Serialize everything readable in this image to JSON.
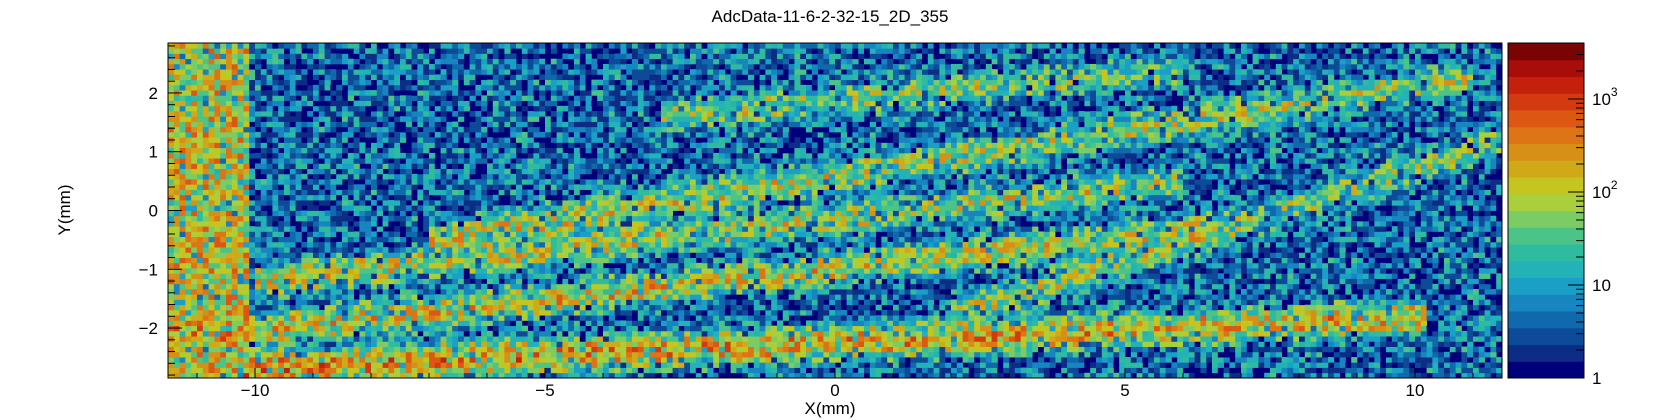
{
  "chart_data": {
    "type": "heatmap",
    "title": "AdcData-11-6-2-32-15_2D_355",
    "xlabel": "X(mm)",
    "ylabel": "Y(mm)",
    "xlim": [
      -11.5,
      11.5
    ],
    "ylim": [
      -2.85,
      2.85
    ],
    "x_ticks": [
      {
        "value": -10,
        "label": "−10"
      },
      {
        "value": -5,
        "label": "−5"
      },
      {
        "value": 0,
        "label": "0"
      },
      {
        "value": 5,
        "label": "5"
      },
      {
        "value": 10,
        "label": "10"
      }
    ],
    "y_ticks": [
      {
        "value": -2,
        "label": "−2"
      },
      {
        "value": -1,
        "label": "−1"
      },
      {
        "value": 0,
        "label": "0"
      },
      {
        "value": 1,
        "label": "1"
      },
      {
        "value": 2,
        "label": "2"
      }
    ],
    "z_scale": "log",
    "zlim": [
      1,
      4000
    ],
    "z_ticks": [
      {
        "value": 1,
        "label": "1"
      },
      {
        "value": 10,
        "label": "10"
      },
      {
        "value": 100,
        "base": "10",
        "exp": "2"
      },
      {
        "value": 1000,
        "base": "10",
        "exp": "3"
      }
    ],
    "grid": false,
    "colormap": [
      "#00007a",
      "#0d2c86",
      "#0d4a98",
      "#1068ad",
      "#1685c0",
      "#1aa0c6",
      "#22b2b8",
      "#2fbb9f",
      "#4dc487",
      "#7ccc66",
      "#a9cf3d",
      "#c6c41e",
      "#cfa918",
      "#d88f17",
      "#dd7415",
      "#dc5812",
      "#d33a0f",
      "#c4200c",
      "#a90d09",
      "#7a0403"
    ],
    "structures": [
      {
        "kind": "band",
        "x": [
          -10.2,
          10.2
        ],
        "y": [
          -2.7,
          -1.8
        ],
        "peak": 300
      },
      {
        "kind": "band",
        "x": [
          -11.5,
          6.5
        ],
        "y": [
          -2.2,
          -0.3
        ],
        "peak": 150
      },
      {
        "kind": "band",
        "x": [
          -10.0,
          6.0
        ],
        "y": [
          -1.2,
          0.5
        ],
        "peak": 110
      },
      {
        "kind": "band",
        "x": [
          -7.0,
          11.0
        ],
        "y": [
          -0.5,
          2.3
        ],
        "peak": 100
      },
      {
        "kind": "band",
        "x": [
          2.0,
          11.5
        ],
        "y": [
          -1.8,
          1.2
        ],
        "peak": 70
      },
      {
        "kind": "band",
        "x": [
          -3.0,
          6.0
        ],
        "y": [
          1.6,
          2.4
        ],
        "peak": 60
      },
      {
        "kind": "region",
        "x": [
          -11.5,
          -10.1
        ],
        "y": [
          -2.85,
          2.85
        ],
        "peak": 130
      },
      {
        "kind": "region",
        "x": [
          -10.1,
          11.5
        ],
        "y": [
          -2.85,
          2.85
        ],
        "peak": 6
      }
    ]
  }
}
